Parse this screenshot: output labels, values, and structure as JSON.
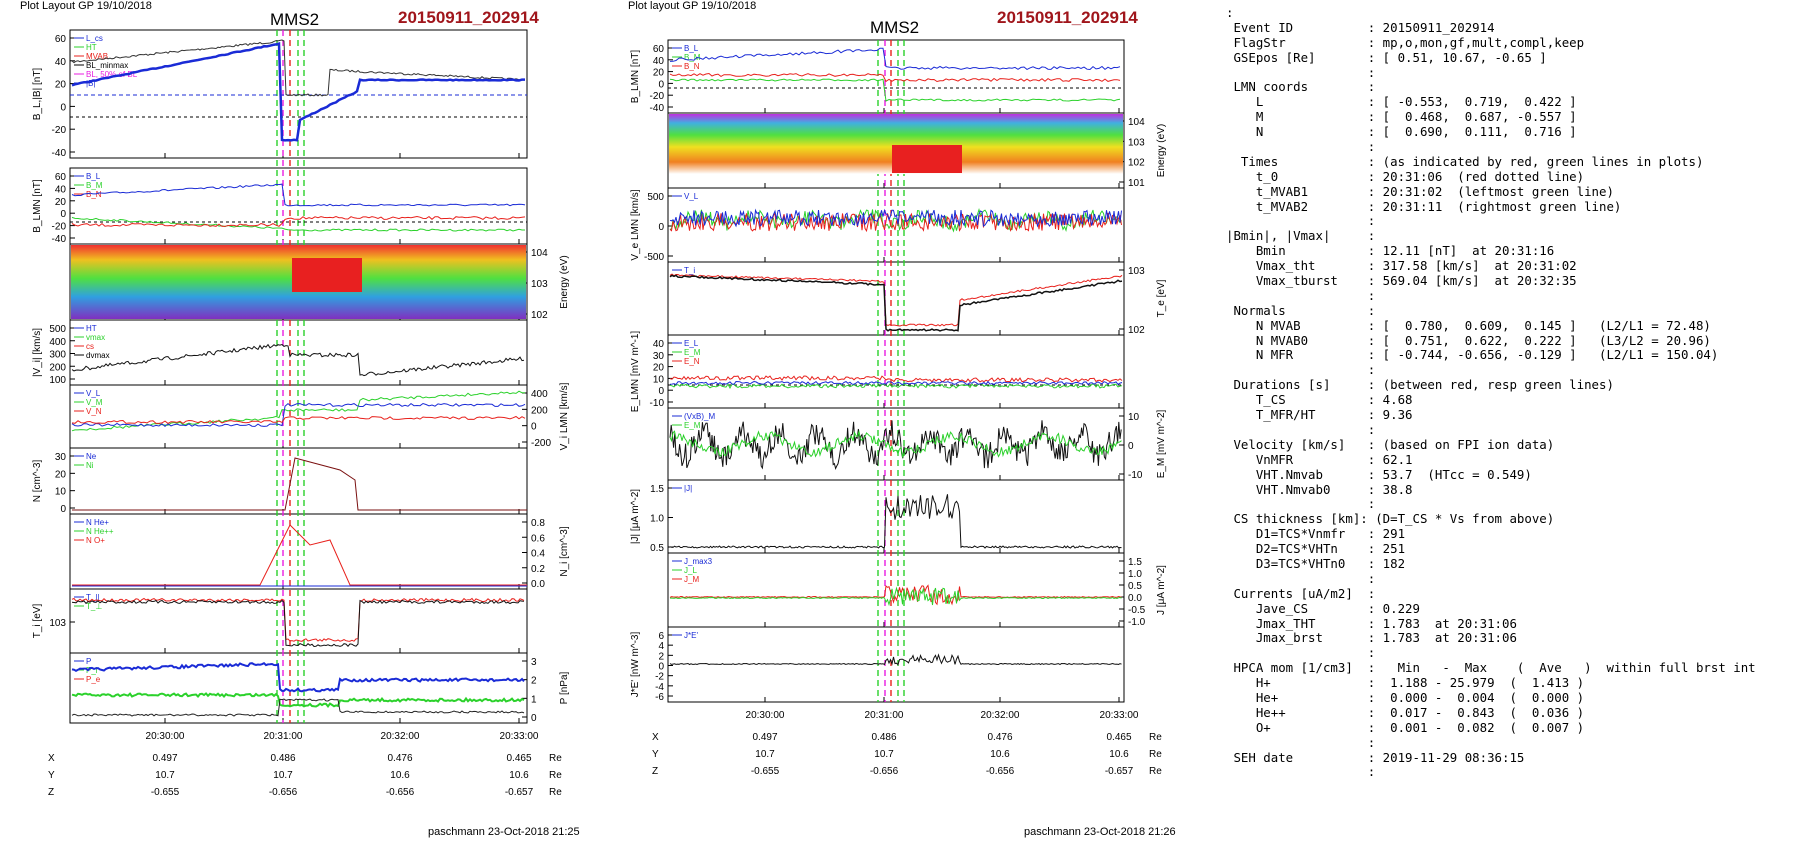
{
  "left_panel": {
    "header": "Plot Layout GP 19/10/2018",
    "sc": "MMS2",
    "event": "20150911_202914",
    "footer": "paschmann 23-Oct-2018 21:25",
    "time_ticks": [
      "20:30:00",
      "20:31:00",
      "20:32:00",
      "20:33:00"
    ],
    "orbit": {
      "labels": [
        "X",
        "Y",
        "Z"
      ],
      "unit": "Re",
      "rows": [
        [
          "0.497",
          "0.486",
          "0.476",
          "0.465"
        ],
        [
          "10.7",
          "10.7",
          "10.6",
          "10.6"
        ],
        [
          "-0.655",
          "-0.656",
          "-0.656",
          "-0.657"
        ]
      ]
    },
    "panels": [
      {
        "ylabel": "B_L,|B| [nT]",
        "ticks": [
          "60",
          "40",
          "20",
          "0",
          "-20",
          "-40"
        ],
        "legend": [
          "L_cs",
          "HT",
          "MVAB",
          "BL_minmax",
          "BL, 50% of BL",
          "|B|"
        ]
      },
      {
        "ylabel": "B_LMN [nT]",
        "ticks": [
          "60",
          "40",
          "20",
          "0",
          "-20",
          "-40"
        ],
        "legend": [
          "B_L",
          "B_M",
          "B_N"
        ]
      },
      {
        "ylabel_right": "Energy (eV)",
        "ticks_right": [
          "10^4",
          "10^3",
          "10^2"
        ]
      },
      {
        "ylabel": "|V_i| [km/s]",
        "ticks": [
          "500",
          "400",
          "300",
          "200",
          "100"
        ],
        "legend": [
          "HT",
          "vmax",
          "cs",
          "dvmax"
        ]
      },
      {
        "ylabel_right": "V_i LMN [km/s]",
        "ticks_right": [
          "400",
          "200",
          "0",
          "-200"
        ],
        "legend": [
          "V_L",
          "V_M",
          "V_N"
        ]
      },
      {
        "ylabel": "N [cm^-3]",
        "ticks": [
          "30",
          "20",
          "10",
          "0"
        ],
        "legend": [
          "Ne",
          "Ni"
        ]
      },
      {
        "ylabel_right": "N_i [cm^-3]",
        "ticks_right": [
          "0.8",
          "0.6",
          "0.4",
          "0.2",
          "0.0"
        ],
        "legend": [
          "N He+",
          "N He++",
          "N O+"
        ]
      },
      {
        "ylabel": "T_i [eV]",
        "ticks": [
          "10^3"
        ],
        "legend": [
          "T_||",
          "T_⊥"
        ]
      },
      {
        "ylabel_right": "P [nPa]",
        "ticks_right": [
          "3",
          "2",
          "1",
          "0"
        ],
        "legend": [
          "P",
          "P_i",
          "P_e"
        ]
      }
    ]
  },
  "middle_panel": {
    "header": "Plot layout GP 19/10/2018",
    "sc": "MMS2",
    "event": "20150911_202914",
    "footer": "paschmann 23-Oct-2018 21:26",
    "time_ticks": [
      "20:30:00",
      "20:31:00",
      "20:32:00",
      "20:33:00"
    ],
    "orbit": {
      "labels": [
        "X",
        "Y",
        "Z"
      ],
      "unit": "Re",
      "rows": [
        [
          "0.497",
          "0.486",
          "0.476",
          "0.465"
        ],
        [
          "10.7",
          "10.7",
          "10.6",
          "10.6"
        ],
        [
          "-0.655",
          "-0.656",
          "-0.656",
          "-0.657"
        ]
      ]
    },
    "panels": [
      {
        "ylabel": "B_LMN [nT]",
        "ticks": [
          "60",
          "40",
          "20",
          "0",
          "-20",
          "-40"
        ],
        "legend": [
          "B_L",
          "B_M",
          "B_N"
        ]
      },
      {
        "ylabel_right": "Energy (eV)",
        "ticks_right": [
          "10^4",
          "10^3",
          "10^2",
          "10^1"
        ]
      },
      {
        "ylabel": "V_e LMN [km/s]",
        "ticks": [
          "500",
          "0",
          "-500"
        ],
        "legend": [
          "V_L"
        ]
      },
      {
        "ylabel_right": "T_e [eV]",
        "ticks_right": [
          "10^3",
          "10^2"
        ],
        "legend": [
          "T_i"
        ]
      },
      {
        "ylabel": "E_LMN [mV m^-1]",
        "ticks": [
          "40",
          "30",
          "20",
          "10",
          "0",
          "-10"
        ],
        "legend": [
          "E_L",
          "E_M",
          "E_N"
        ]
      },
      {
        "ylabel_right": "E_M [mV m^-2]",
        "ticks_right": [
          "10",
          "0",
          "-10"
        ],
        "legend": [
          "(VxB)_M",
          "E_M"
        ]
      },
      {
        "ylabel": "|J| [μA m^-2]",
        "ticks": [
          "1.5",
          "1.0",
          "0.5"
        ],
        "legend": [
          "|J|"
        ]
      },
      {
        "ylabel_right": "J [μA m^-2]",
        "ticks_right": [
          "1.5",
          "1.0",
          "0.5",
          "0.0",
          "-0.5",
          "-1.0"
        ],
        "legend": [
          "J_max3",
          "J_L",
          "J_M"
        ]
      },
      {
        "ylabel": "J*E' [nW m^-3]",
        "ticks": [
          "6",
          "4",
          "2",
          "0",
          "-2",
          "-4",
          "-6"
        ],
        "legend": [
          "J*E'"
        ]
      }
    ]
  },
  "info_lines": [
    ":",
    " Event ID          : 20150911_202914",
    " FlagStr           : mp,o,mon,gf,mult,compl,keep",
    " GSEpos [Re]       : [ 0.51, 10.67, -0.65 ]",
    "                   :",
    " LMN coords        :",
    "    L              : [ -0.553,  0.719,  0.422 ]",
    "    M              : [  0.468,  0.687, -0.557 ]",
    "    N              : [  0.690,  0.111,  0.716 ]",
    "                   :",
    "  Times            : (as indicated by red, green lines in plots)",
    "    t_0            : 20:31:06  (red dotted line)",
    "    t_MVAB1        : 20:31:02  (leftmost green line)",
    "    t_MVAB2        : 20:31:11  (rightmost green line)",
    "                   :",
    "|Bmin|, |Vmax|     :",
    "    Bmin           : 12.11 [nT]  at 20:31:16",
    "    Vmax_tht       : 317.58 [km/s]  at 20:31:02",
    "    Vmax_tburst    : 569.04 [km/s]  at 20:32:35",
    "                   :",
    " Normals           :",
    "    N MVAB         : [  0.780,  0.609,  0.145 ]   (L2/L1 = 72.48)",
    "    N MVAB0        : [  0.751,  0.622,  0.222 ]   (L3/L2 = 20.96)",
    "    N MFR          : [ -0.744, -0.656, -0.129 ]   (L2/L1 = 150.04)",
    "                   :",
    " Durations [s]     : (between red, resp green lines)",
    "    T_CS           : 4.68",
    "    T_MFR/HT       : 9.36",
    "                   :",
    " Velocity [km/s]   : (based on FPI ion data)",
    "    VnMFR          : 62.1",
    "    VHT.Nmvab      : 53.7  (HTcc = 0.549)",
    "    VHT.Nmvab0     : 38.8",
    "                   :",
    " CS thickness [km]: (D=T_CS * Vs from above)",
    "    D1=TCS*Vnmfr   : 291",
    "    D2=TCS*VHTn    : 251",
    "    D3=TCS*VHTn0   : 182",
    "                   :",
    " Currents [uA/m2]  :",
    "    Jave_CS        : 0.229",
    "    Jmax_THT       : 1.783  at 20:31:06",
    "    Jmax_brst      : 1.783  at 20:31:06",
    "                   :",
    " HPCA mom [1/cm3]  :   Min   -  Max    (  Ave   )  within full brst int",
    "    H+             :  1.188 - 25.979  (  1.413 )",
    "    He+            :  0.000 -  0.004  (  0.000 )",
    "    He++           :  0.017 -  0.843  (  0.036 )",
    "    O+             :  0.001 -  0.082  (  0.007 )",
    "                   :",
    " SEH date          : 2019-11-29 08:36:15",
    "                   :"
  ],
  "colors": {
    "blue": "#1a2bd6",
    "green": "#2bd12b",
    "red": "#e8211c",
    "black": "#000000",
    "magenta": "#e81ce0",
    "title_red": "#a0151b"
  }
}
